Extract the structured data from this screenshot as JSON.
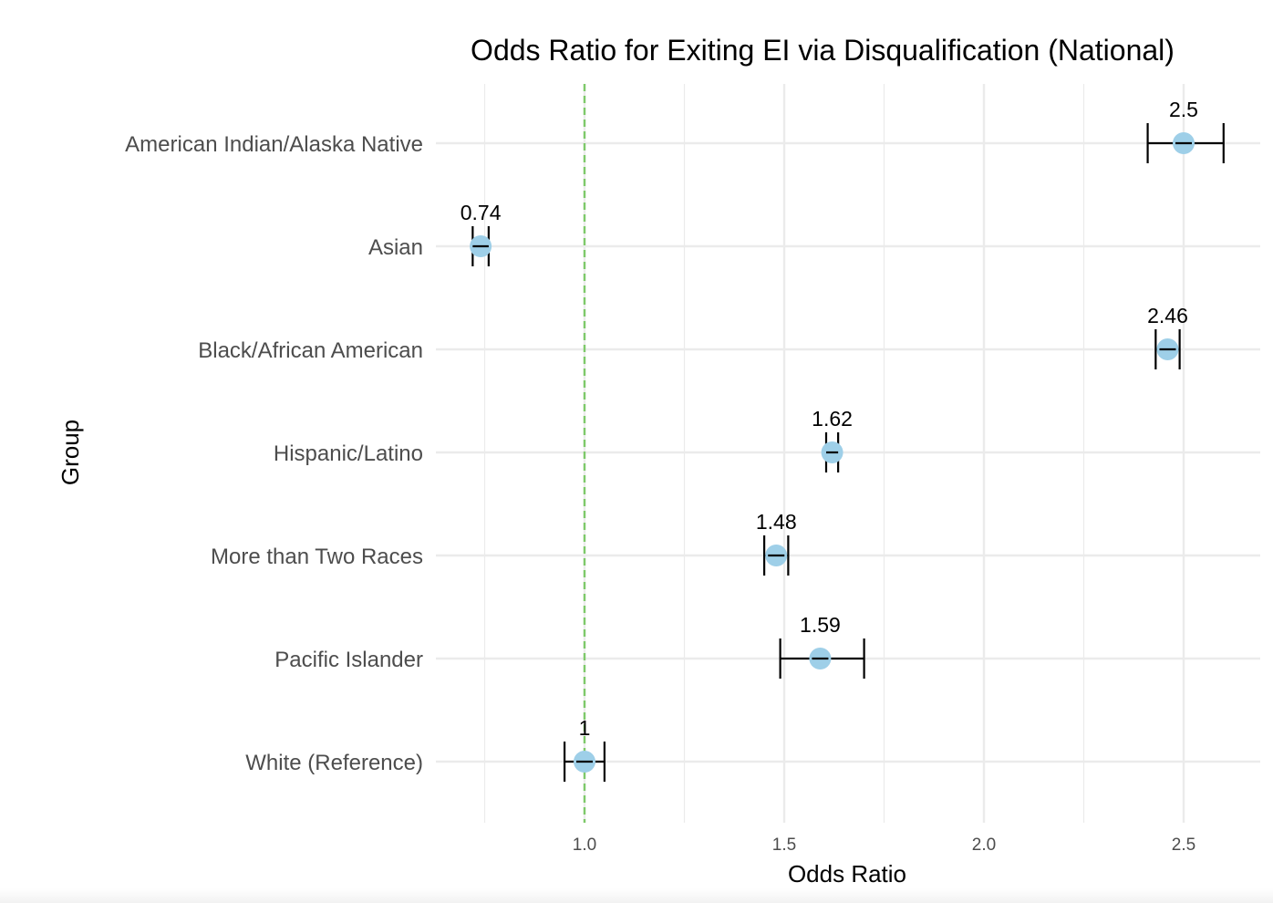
{
  "chart_data": {
    "type": "scatter",
    "title": "Odds Ratio for Exiting EI via Disqualification (National)",
    "xlabel": "Odds Ratio",
    "ylabel": "Group",
    "xlim": [
      0.74,
      2.6
    ],
    "x_ticks": [
      "1.0",
      "1.5",
      "2.0",
      "2.5"
    ],
    "x_tick_values": [
      1.0,
      1.5,
      2.0,
      2.5
    ],
    "x_minor_gridlines": [
      0.75,
      1.25,
      1.75,
      2.25
    ],
    "reference_line": {
      "x": 1.0,
      "style": "dashed",
      "color": "#7ec96a"
    },
    "grid": true,
    "point_color": "#9ecfe8",
    "errorbar_color": "#000000",
    "categories": [
      "American Indian/Alaska Native",
      "Asian",
      "Black/African American",
      "Hispanic/Latino",
      "More than Two Races",
      "Pacific Islander",
      "White (Reference)"
    ],
    "points": [
      {
        "group": "American Indian/Alaska Native",
        "value": 2.5,
        "label": "2.5",
        "ci_low": 2.41,
        "ci_high": 2.6
      },
      {
        "group": "Asian",
        "value": 0.74,
        "label": "0.74",
        "ci_low": 0.72,
        "ci_high": 0.76
      },
      {
        "group": "Black/African American",
        "value": 2.46,
        "label": "2.46",
        "ci_low": 2.43,
        "ci_high": 2.49
      },
      {
        "group": "Hispanic/Latino",
        "value": 1.62,
        "label": "1.62",
        "ci_low": 1.605,
        "ci_high": 1.635
      },
      {
        "group": "More than Two Races",
        "value": 1.48,
        "label": "1.48",
        "ci_low": 1.45,
        "ci_high": 1.51
      },
      {
        "group": "Pacific Islander",
        "value": 1.59,
        "label": "1.59",
        "ci_low": 1.49,
        "ci_high": 1.7
      },
      {
        "group": "White (Reference)",
        "value": 1.0,
        "label": "1",
        "ci_low": 0.95,
        "ci_high": 1.05
      }
    ]
  }
}
